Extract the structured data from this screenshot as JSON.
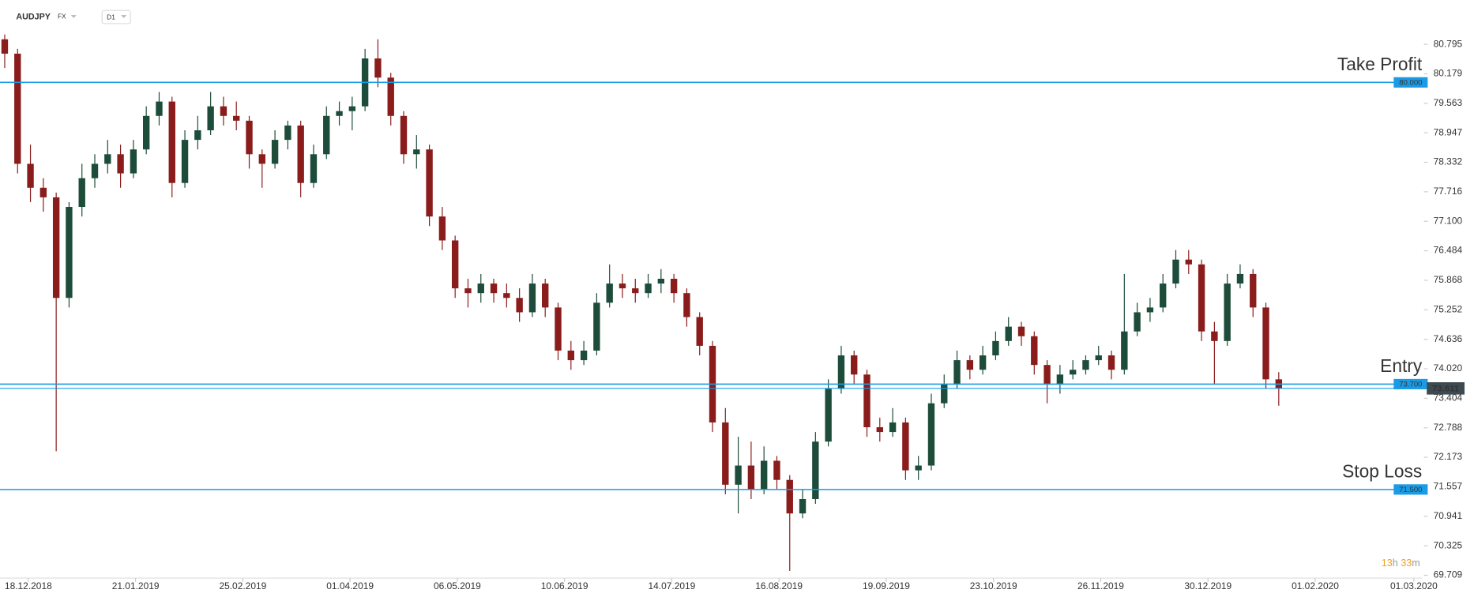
{
  "chart_data": {
    "type": "candlestick",
    "symbol": "AUDJPY",
    "market": "FX",
    "interval": "D1",
    "timer": [
      "13",
      "h",
      "33",
      "m"
    ],
    "up_color": "#1d4d3a",
    "down_color": "#8a1c1c",
    "level_color": "#1a9be6",
    "x": [
      0,
      3,
      6,
      9,
      12,
      15,
      18,
      21,
      24,
      27,
      30,
      33,
      36,
      39,
      42,
      45,
      48,
      51,
      54,
      57,
      60,
      63,
      66,
      69,
      72,
      75,
      78,
      81,
      84,
      87,
      90,
      93,
      96,
      99,
      102,
      105,
      108,
      111,
      114,
      117,
      120,
      123,
      126,
      129,
      132,
      135,
      138,
      141,
      144,
      147,
      150,
      153,
      156,
      159,
      162,
      165,
      168,
      171,
      174,
      177,
      180,
      183,
      186,
      189,
      192,
      195,
      198,
      201,
      204,
      207,
      210,
      213,
      216,
      219,
      222,
      225,
      228,
      231,
      234,
      237,
      240,
      243,
      246,
      249,
      252,
      255,
      258,
      261,
      264,
      267,
      270,
      273,
      276,
      279,
      282,
      285,
      288,
      291,
      294,
      297
    ],
    "ohlc": [
      [
        80.9,
        81.0,
        80.3,
        80.6
      ],
      [
        80.6,
        80.7,
        78.1,
        78.3
      ],
      [
        78.3,
        78.7,
        77.5,
        77.8
      ],
      [
        77.8,
        78.0,
        77.3,
        77.6
      ],
      [
        77.6,
        77.7,
        72.3,
        75.5
      ],
      [
        75.5,
        77.5,
        75.3,
        77.4
      ],
      [
        77.4,
        78.3,
        77.2,
        78.0
      ],
      [
        78.0,
        78.5,
        77.8,
        78.3
      ],
      [
        78.3,
        78.8,
        78.1,
        78.5
      ],
      [
        78.5,
        78.7,
        77.8,
        78.1
      ],
      [
        78.1,
        78.8,
        78.0,
        78.6
      ],
      [
        78.6,
        79.5,
        78.5,
        79.3
      ],
      [
        79.3,
        79.8,
        79.1,
        79.6
      ],
      [
        79.6,
        79.7,
        77.6,
        77.9
      ],
      [
        77.9,
        79.0,
        77.8,
        78.8
      ],
      [
        78.8,
        79.3,
        78.6,
        79.0
      ],
      [
        79.0,
        79.8,
        78.9,
        79.5
      ],
      [
        79.5,
        79.7,
        79.1,
        79.3
      ],
      [
        79.3,
        79.6,
        79.0,
        79.2
      ],
      [
        79.2,
        79.3,
        78.2,
        78.5
      ],
      [
        78.5,
        78.6,
        77.8,
        78.3
      ],
      [
        78.3,
        79.0,
        78.2,
        78.8
      ],
      [
        78.8,
        79.2,
        78.6,
        79.1
      ],
      [
        79.1,
        79.2,
        77.6,
        77.9
      ],
      [
        77.9,
        78.7,
        77.8,
        78.5
      ],
      [
        78.5,
        79.5,
        78.4,
        79.3
      ],
      [
        79.3,
        79.6,
        79.1,
        79.4
      ],
      [
        79.4,
        79.7,
        79.0,
        79.5
      ],
      [
        79.5,
        80.7,
        79.4,
        80.5
      ],
      [
        80.5,
        80.9,
        79.9,
        80.1
      ],
      [
        80.1,
        80.2,
        79.1,
        79.3
      ],
      [
        79.3,
        79.4,
        78.3,
        78.5
      ],
      [
        78.5,
        78.9,
        78.2,
        78.6
      ],
      [
        78.6,
        78.7,
        77.0,
        77.2
      ],
      [
        77.2,
        77.4,
        76.5,
        76.7
      ],
      [
        76.7,
        76.8,
        75.5,
        75.7
      ],
      [
        75.7,
        75.9,
        75.3,
        75.6
      ],
      [
        75.6,
        76.0,
        75.4,
        75.8
      ],
      [
        75.8,
        75.9,
        75.4,
        75.6
      ],
      [
        75.6,
        75.8,
        75.3,
        75.5
      ],
      [
        75.5,
        75.7,
        75.0,
        75.2
      ],
      [
        75.2,
        76.0,
        75.1,
        75.8
      ],
      [
        75.8,
        75.9,
        75.1,
        75.3
      ],
      [
        75.3,
        75.4,
        74.2,
        74.4
      ],
      [
        74.4,
        74.6,
        74.0,
        74.2
      ],
      [
        74.2,
        74.6,
        74.1,
        74.4
      ],
      [
        74.4,
        75.6,
        74.3,
        75.4
      ],
      [
        75.4,
        76.2,
        75.3,
        75.8
      ],
      [
        75.8,
        76.0,
        75.5,
        75.7
      ],
      [
        75.7,
        75.9,
        75.4,
        75.6
      ],
      [
        75.6,
        76.0,
        75.5,
        75.8
      ],
      [
        75.8,
        76.1,
        75.6,
        75.9
      ],
      [
        75.9,
        76.0,
        75.4,
        75.6
      ],
      [
        75.6,
        75.7,
        74.9,
        75.1
      ],
      [
        75.1,
        75.2,
        74.3,
        74.5
      ],
      [
        74.5,
        74.6,
        72.7,
        72.9
      ],
      [
        72.9,
        73.2,
        71.4,
        71.6
      ],
      [
        71.6,
        72.6,
        71.0,
        72.0
      ],
      [
        72.0,
        72.5,
        71.3,
        71.5
      ],
      [
        71.5,
        72.4,
        71.4,
        72.1
      ],
      [
        72.1,
        72.2,
        71.5,
        71.7
      ],
      [
        71.7,
        71.8,
        69.8,
        71.0
      ],
      [
        71.0,
        71.5,
        70.9,
        71.3
      ],
      [
        71.3,
        72.7,
        71.2,
        72.5
      ],
      [
        72.5,
        73.8,
        72.4,
        73.6
      ],
      [
        73.6,
        74.5,
        73.5,
        74.3
      ],
      [
        74.3,
        74.4,
        73.7,
        73.9
      ],
      [
        73.9,
        74.0,
        72.6,
        72.8
      ],
      [
        72.8,
        73.0,
        72.5,
        72.7
      ],
      [
        72.7,
        73.2,
        72.6,
        72.9
      ],
      [
        72.9,
        73.0,
        71.7,
        71.9
      ],
      [
        71.9,
        72.2,
        71.7,
        72.0
      ],
      [
        72.0,
        73.5,
        71.9,
        73.3
      ],
      [
        73.3,
        73.9,
        73.2,
        73.7
      ],
      [
        73.7,
        74.4,
        73.6,
        74.2
      ],
      [
        74.2,
        74.3,
        73.8,
        74.0
      ],
      [
        74.0,
        74.5,
        73.9,
        74.3
      ],
      [
        74.3,
        74.8,
        74.2,
        74.6
      ],
      [
        74.6,
        75.1,
        74.5,
        74.9
      ],
      [
        74.9,
        75.0,
        74.5,
        74.7
      ],
      [
        74.7,
        74.8,
        73.9,
        74.1
      ],
      [
        74.1,
        74.2,
        73.3,
        73.7
      ],
      [
        73.7,
        74.1,
        73.5,
        73.9
      ],
      [
        73.9,
        74.2,
        73.8,
        74.0
      ],
      [
        74.0,
        74.3,
        73.9,
        74.2
      ],
      [
        74.2,
        74.5,
        74.1,
        74.3
      ],
      [
        74.3,
        74.4,
        73.8,
        74.0
      ],
      [
        74.0,
        76.0,
        73.9,
        74.8
      ],
      [
        74.8,
        75.4,
        74.7,
        75.2
      ],
      [
        75.2,
        75.5,
        75.0,
        75.3
      ],
      [
        75.3,
        76.0,
        75.2,
        75.8
      ],
      [
        75.8,
        76.5,
        75.7,
        76.3
      ],
      [
        76.3,
        76.5,
        76.0,
        76.2
      ],
      [
        76.2,
        76.3,
        74.6,
        74.8
      ],
      [
        74.8,
        75.0,
        73.7,
        74.6
      ],
      [
        74.6,
        76.0,
        74.5,
        75.8
      ],
      [
        75.8,
        76.2,
        75.7,
        76.0
      ],
      [
        76.0,
        76.1,
        75.1,
        75.3
      ],
      [
        75.3,
        75.4,
        73.6,
        73.8
      ],
      [
        73.8,
        73.95,
        73.25,
        73.611
      ]
    ],
    "xlim": [
      -1.1,
      330.4
    ],
    "xticks": [
      {
        "value": 5.5,
        "label": "18.12.2018"
      },
      {
        "value": 30.5,
        "label": "21.01.2019"
      },
      {
        "value": 55.5,
        "label": "25.02.2019"
      },
      {
        "value": 80.5,
        "label": "01.04.2019"
      },
      {
        "value": 105.5,
        "label": "06.05.2019"
      },
      {
        "value": 130.5,
        "label": "10.06.2019"
      },
      {
        "value": 155.5,
        "label": "14.07.2019"
      },
      {
        "value": 180.5,
        "label": "16.08.2019"
      },
      {
        "value": 205.5,
        "label": "19.09.2019"
      },
      {
        "value": 230.5,
        "label": "23.10.2019"
      },
      {
        "value": 255.5,
        "label": "26.11.2019"
      },
      {
        "value": 280.5,
        "label": "30.12.2019"
      },
      {
        "value": 305.5,
        "label": "01.02.2020"
      },
      {
        "value": 328.5,
        "label": "01.03.2020"
      }
    ],
    "ylim": [
      69.65,
      81.72
    ],
    "yticks": [
      80.795,
      80.179,
      79.563,
      78.947,
      78.332,
      77.716,
      {
        "value": 77.1,
        "label": "77.100"
      },
      76.484,
      75.868,
      75.252,
      74.636,
      {
        "value": 74.02,
        "label": "74.020"
      },
      73.404,
      72.788,
      72.173,
      71.557,
      70.941,
      70.325,
      69.709
    ],
    "levels": [
      {
        "name": "Take Profit",
        "value": 80,
        "label": "80.000"
      },
      {
        "name": "Entry",
        "value": 73.7,
        "label": "73.700"
      },
      {
        "name": "Stop Loss",
        "value": 71.5,
        "label": "71.500"
      }
    ],
    "last_price": 73.611
  }
}
